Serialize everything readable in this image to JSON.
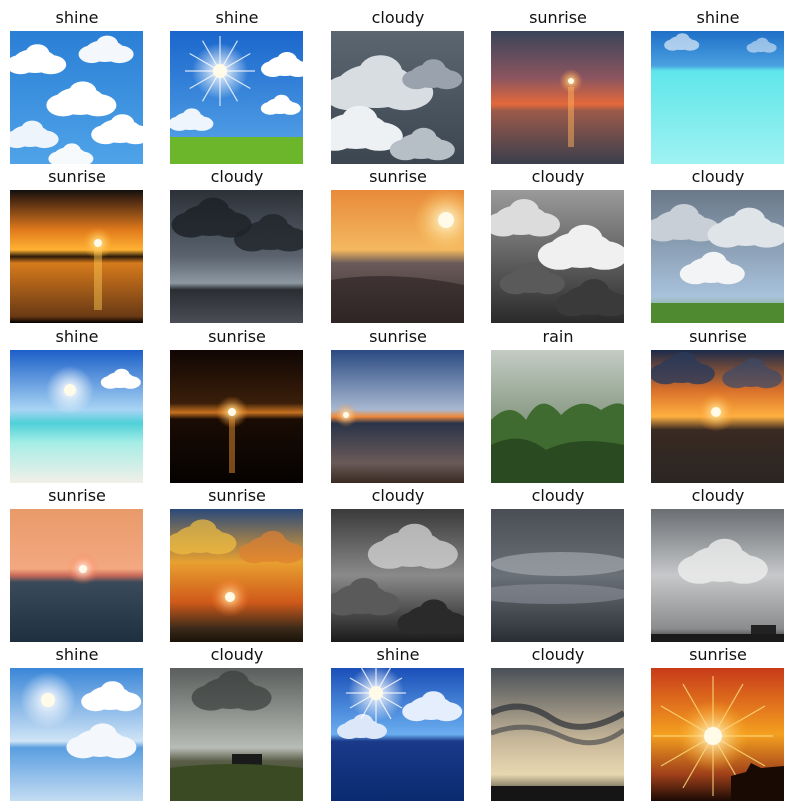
{
  "tiles": [
    {
      "label": "shine",
      "scene": "clouds-blue"
    },
    {
      "label": "shine",
      "scene": "sun-field"
    },
    {
      "label": "cloudy",
      "scene": "gray-cumulus"
    },
    {
      "label": "sunrise",
      "scene": "sea-sunset-dusk"
    },
    {
      "label": "shine",
      "scene": "turquoise-water"
    },
    {
      "label": "sunrise",
      "scene": "orange-horizon"
    },
    {
      "label": "cloudy",
      "scene": "dark-storm-sea"
    },
    {
      "label": "sunrise",
      "scene": "beach-sun"
    },
    {
      "label": "cloudy",
      "scene": "bw-clouds"
    },
    {
      "label": "cloudy",
      "scene": "clouds-over-field"
    },
    {
      "label": "shine",
      "scene": "bright-beach"
    },
    {
      "label": "sunrise",
      "scene": "night-sun"
    },
    {
      "label": "sunrise",
      "scene": "calm-sea-sunset"
    },
    {
      "label": "rain",
      "scene": "rain-trees"
    },
    {
      "label": "sunrise",
      "scene": "dramatic-sunset"
    },
    {
      "label": "sunrise",
      "scene": "pink-sea-sunset"
    },
    {
      "label": "sunrise",
      "scene": "fiery-sky"
    },
    {
      "label": "cloudy",
      "scene": "dark-clouds"
    },
    {
      "label": "cloudy",
      "scene": "stratus-layers"
    },
    {
      "label": "cloudy",
      "scene": "overcast-building"
    },
    {
      "label": "shine",
      "scene": "sun-water-reflection"
    },
    {
      "label": "cloudy",
      "scene": "hill-hut"
    },
    {
      "label": "shine",
      "scene": "sun-blue-sea"
    },
    {
      "label": "cloudy",
      "scene": "wave-clouds"
    },
    {
      "label": "sunrise",
      "scene": "sunburst"
    }
  ]
}
